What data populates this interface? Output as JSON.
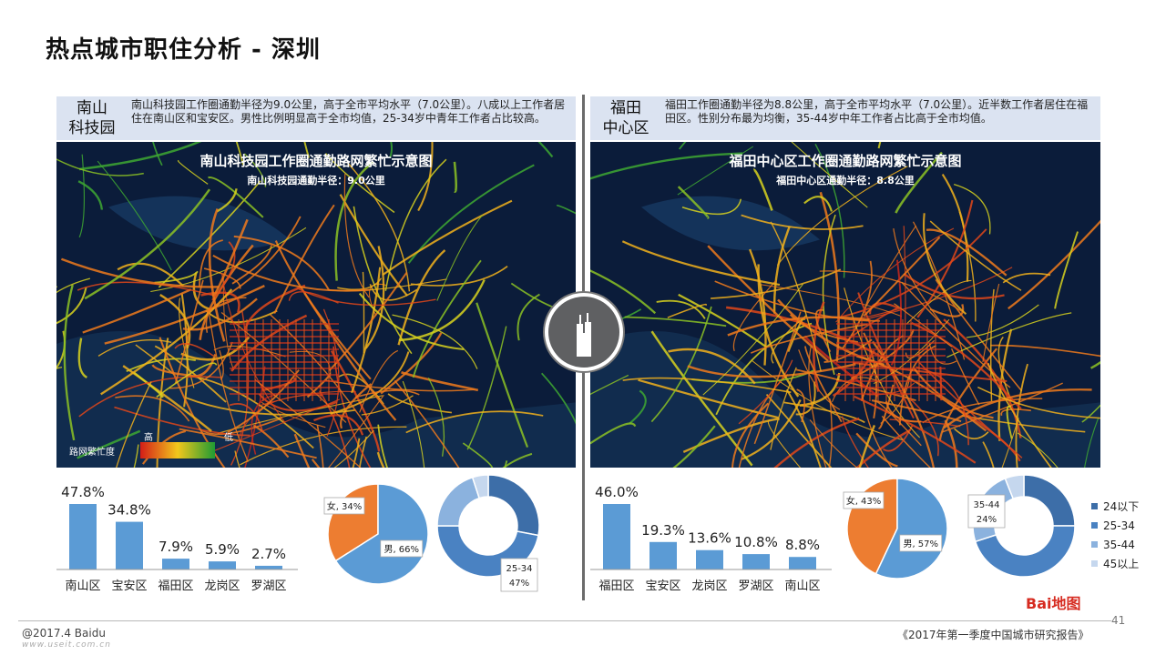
{
  "page": {
    "title": "热点城市职住分析 - 深圳",
    "copyright": "@2017.4 Baidu",
    "watermark": "www.useit.com.cn",
    "report": "《2017年第一季度中国城市研究报告》",
    "page_number": "41",
    "logo": "Bai地图"
  },
  "left": {
    "tag_line1": "南山",
    "tag_line2": "科技园",
    "description": "南山科技园工作圈通勤半径为9.0公里，高于全市平均水平（7.0公里）。八成以上工作者居住在南山区和宝安区。男性比例明显高于全市均值，25-34岁中青年工作者占比较高。",
    "map_title": "南山科技园工作圈通勤路网繁忙示意图",
    "map_subtitle": "南山科技园通勤半径：9.0公里",
    "legend_label": "路网繁忙度",
    "legend_high": "高",
    "legend_low": "低",
    "pie_labels": [
      "女, 34%",
      "男, 66%"
    ],
    "donut_callout": [
      "25-34",
      "47%"
    ]
  },
  "right": {
    "tag_line1": "福田",
    "tag_line2": "中心区",
    "description": "福田工作圈通勤半径为8.8公里，高于全市平均水平（7.0公里）。近半数工作者居住在福田区。性别分布最为均衡，35-44岁中年工作者占比高于全市均值。",
    "map_title": "福田中心区工作圈通勤路网繁忙示意图",
    "map_subtitle": "福田中心区通勤半径：8.8公里",
    "pie_labels": [
      "女, 43%",
      "男, 57%"
    ],
    "donut_callout": [
      "35-44",
      "24%"
    ]
  },
  "donut_legend": [
    {
      "label": "24以下",
      "color": "#3d6ea8"
    },
    {
      "label": "25-34",
      "color": "#4a82c2"
    },
    {
      "label": "35-44",
      "color": "#8bb2de"
    },
    {
      "label": "45以上",
      "color": "#c5d7ee"
    }
  ],
  "colors": {
    "bar": "#5b9bd5",
    "male": "#5b9bd5",
    "female": "#ed7d31",
    "map_bg": "#0b1c3a"
  },
  "chart_data": [
    {
      "type": "bar",
      "categories": [
        "南山区",
        "宝安区",
        "福田区",
        "龙岗区",
        "罗湖区"
      ],
      "values": [
        47.8,
        34.8,
        7.9,
        5.9,
        2.7
      ],
      "labels": [
        "47.8%",
        "34.8%",
        "7.9%",
        "5.9%",
        "2.7%"
      ]
    },
    {
      "type": "pie",
      "categories": [
        "女",
        "男"
      ],
      "values": [
        34,
        66
      ]
    },
    {
      "type": "pie",
      "subtype": "donut",
      "categories": [
        "24以下",
        "25-34",
        "35-44",
        "45以上"
      ],
      "values": [
        28,
        47,
        20,
        5
      ]
    },
    {
      "type": "bar",
      "categories": [
        "福田区",
        "宝安区",
        "龙岗区",
        "罗湖区",
        "南山区"
      ],
      "values": [
        46.0,
        19.3,
        13.6,
        10.8,
        8.8
      ],
      "labels": [
        "46.0%",
        "19.3%",
        "13.6%",
        "10.8%",
        "8.8%"
      ]
    },
    {
      "type": "pie",
      "categories": [
        "女",
        "男"
      ],
      "values": [
        43,
        57
      ]
    },
    {
      "type": "pie",
      "subtype": "donut",
      "categories": [
        "24以下",
        "25-34",
        "35-44",
        "45以上"
      ],
      "values": [
        25,
        45,
        24,
        6
      ]
    }
  ]
}
